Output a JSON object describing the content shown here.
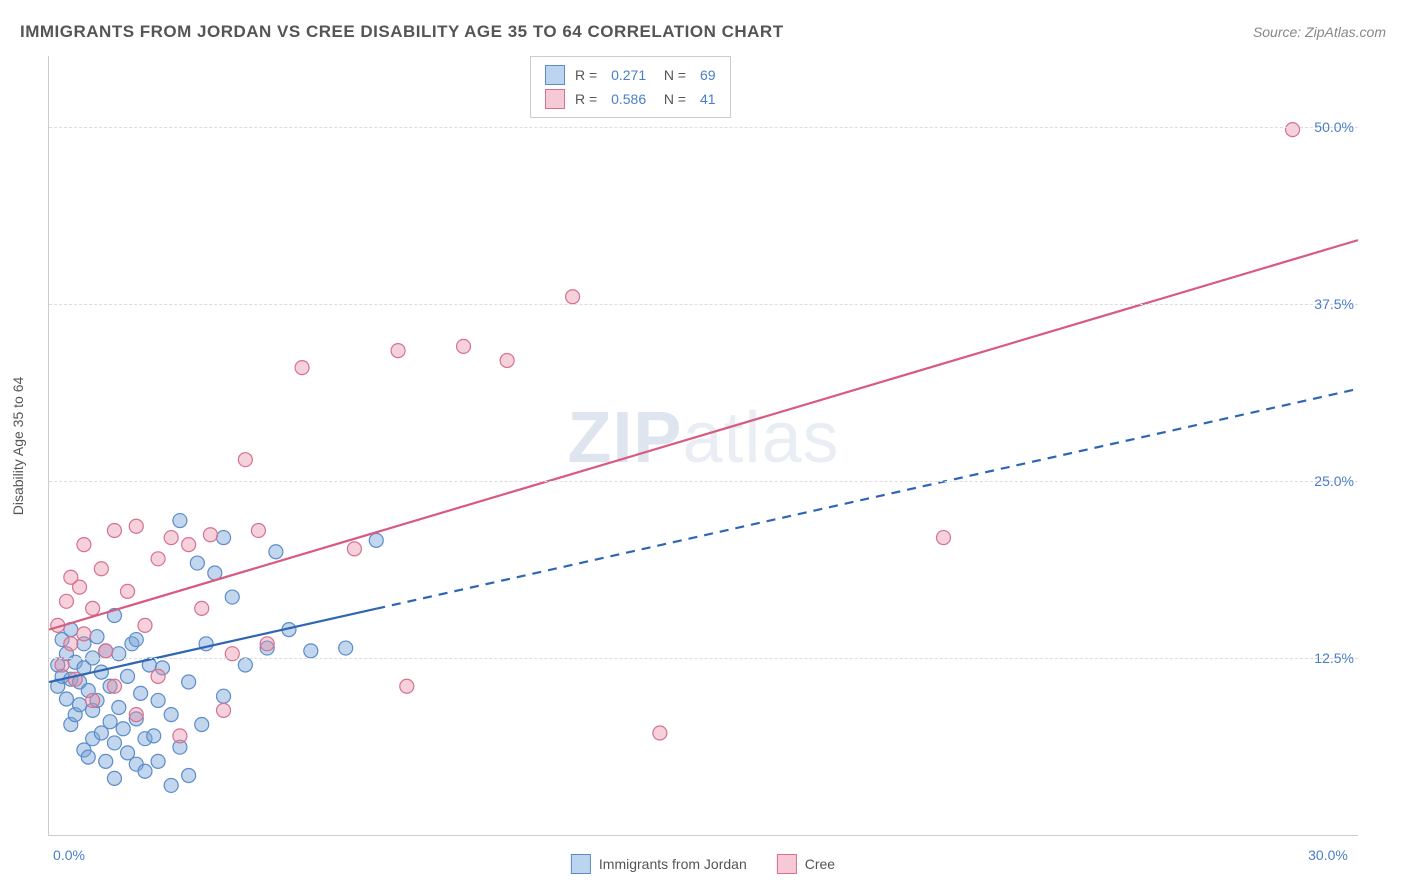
{
  "header": {
    "title": "IMMIGRANTS FROM JORDAN VS CREE DISABILITY AGE 35 TO 64 CORRELATION CHART",
    "source": "Source: ZipAtlas.com"
  },
  "ylabel": "Disability Age 35 to 64",
  "watermark": {
    "bold": "ZIP",
    "light": "atlas"
  },
  "chart": {
    "type": "scatter-with-regression",
    "background_color": "#ffffff",
    "grid_color": "#dddddd",
    "border_color": "#cccccc",
    "tick_label_color": "#4a7ec9",
    "axis_label_color": "#555555",
    "xlim": [
      0,
      30
    ],
    "ylim": [
      0,
      55
    ],
    "xtick_labels": {
      "0": "0.0%",
      "30": "30.0%"
    },
    "ytick_positions": [
      12.5,
      25.0,
      37.5,
      50.0
    ],
    "ytick_labels": [
      "12.5%",
      "25.0%",
      "37.5%",
      "50.0%"
    ],
    "marker_radius": 7,
    "marker_stroke_width": 1.2,
    "line_width": 2.2,
    "series": [
      {
        "id": "jordan",
        "legend_label": "Immigrants from Jordan",
        "swatch_fill": "#bcd4ef",
        "swatch_border": "#5d8cc9",
        "marker_fill": "rgba(120,165,215,0.45)",
        "marker_stroke": "#5d8cc9",
        "line_color": "#2f66b3",
        "R": "0.271",
        "N": "69",
        "regression": {
          "x1": 0,
          "y1": 10.8,
          "x2": 30,
          "y2": 31.5,
          "solid_until_x": 7.5
        },
        "points": [
          [
            0.2,
            10.5
          ],
          [
            0.2,
            12.0
          ],
          [
            0.3,
            11.2
          ],
          [
            0.3,
            13.8
          ],
          [
            0.4,
            9.6
          ],
          [
            0.4,
            12.8
          ],
          [
            0.5,
            11.0
          ],
          [
            0.5,
            14.5
          ],
          [
            0.5,
            7.8
          ],
          [
            0.6,
            8.5
          ],
          [
            0.6,
            12.2
          ],
          [
            0.7,
            9.2
          ],
          [
            0.7,
            10.8
          ],
          [
            0.8,
            6.0
          ],
          [
            0.8,
            13.5
          ],
          [
            0.8,
            11.8
          ],
          [
            0.9,
            5.5
          ],
          [
            0.9,
            10.2
          ],
          [
            1.0,
            8.8
          ],
          [
            1.0,
            12.5
          ],
          [
            1.0,
            6.8
          ],
          [
            1.1,
            14.0
          ],
          [
            1.1,
            9.5
          ],
          [
            1.2,
            7.2
          ],
          [
            1.2,
            11.5
          ],
          [
            1.3,
            5.2
          ],
          [
            1.3,
            13.0
          ],
          [
            1.4,
            8.0
          ],
          [
            1.4,
            10.5
          ],
          [
            1.5,
            4.0
          ],
          [
            1.5,
            6.5
          ],
          [
            1.6,
            12.8
          ],
          [
            1.6,
            9.0
          ],
          [
            1.7,
            7.5
          ],
          [
            1.8,
            11.2
          ],
          [
            1.8,
            5.8
          ],
          [
            1.9,
            13.5
          ],
          [
            2.0,
            8.2
          ],
          [
            2.0,
            5.0
          ],
          [
            2.1,
            10.0
          ],
          [
            2.2,
            6.8
          ],
          [
            2.2,
            4.5
          ],
          [
            2.3,
            12.0
          ],
          [
            2.4,
            7.0
          ],
          [
            2.5,
            9.5
          ],
          [
            2.5,
            5.2
          ],
          [
            2.6,
            11.8
          ],
          [
            2.8,
            3.5
          ],
          [
            2.8,
            8.5
          ],
          [
            3.0,
            6.2
          ],
          [
            3.0,
            22.2
          ],
          [
            3.2,
            10.8
          ],
          [
            3.2,
            4.2
          ],
          [
            3.4,
            19.2
          ],
          [
            3.5,
            7.8
          ],
          [
            3.6,
            13.5
          ],
          [
            3.8,
            18.5
          ],
          [
            4.0,
            9.8
          ],
          [
            4.0,
            21.0
          ],
          [
            4.2,
            16.8
          ],
          [
            4.5,
            12.0
          ],
          [
            5.0,
            13.2
          ],
          [
            5.2,
            20.0
          ],
          [
            5.5,
            14.5
          ],
          [
            6.0,
            13.0
          ],
          [
            6.8,
            13.2
          ],
          [
            7.5,
            20.8
          ],
          [
            2.0,
            13.8
          ],
          [
            1.5,
            15.5
          ]
        ]
      },
      {
        "id": "cree",
        "legend_label": "Cree",
        "swatch_fill": "#f6c9d6",
        "swatch_border": "#d9708f",
        "marker_fill": "rgba(230,140,165,0.40)",
        "marker_stroke": "#d9708f",
        "line_color": "#d85a7f",
        "R": "0.586",
        "N": "41",
        "regression": {
          "x1": 0,
          "y1": 14.5,
          "x2": 30,
          "y2": 42.0,
          "solid_until_x": 30
        },
        "points": [
          [
            0.2,
            14.8
          ],
          [
            0.3,
            12.0
          ],
          [
            0.4,
            16.5
          ],
          [
            0.5,
            13.5
          ],
          [
            0.5,
            18.2
          ],
          [
            0.6,
            11.0
          ],
          [
            0.7,
            17.5
          ],
          [
            0.8,
            14.2
          ],
          [
            0.8,
            20.5
          ],
          [
            1.0,
            16.0
          ],
          [
            1.0,
            9.5
          ],
          [
            1.2,
            18.8
          ],
          [
            1.3,
            13.0
          ],
          [
            1.5,
            21.5
          ],
          [
            1.5,
            10.5
          ],
          [
            1.8,
            17.2
          ],
          [
            2.0,
            8.5
          ],
          [
            2.0,
            21.8
          ],
          [
            2.2,
            14.8
          ],
          [
            2.5,
            19.5
          ],
          [
            2.5,
            11.2
          ],
          [
            2.8,
            21.0
          ],
          [
            3.0,
            7.0
          ],
          [
            3.2,
            20.5
          ],
          [
            3.5,
            16.0
          ],
          [
            3.7,
            21.2
          ],
          [
            4.0,
            8.8
          ],
          [
            4.2,
            12.8
          ],
          [
            4.5,
            26.5
          ],
          [
            5.0,
            13.5
          ],
          [
            5.8,
            33.0
          ],
          [
            7.0,
            20.2
          ],
          [
            8.0,
            34.2
          ],
          [
            8.2,
            10.5
          ],
          [
            9.5,
            34.5
          ],
          [
            10.5,
            33.5
          ],
          [
            12.0,
            38.0
          ],
          [
            14.0,
            7.2
          ],
          [
            20.5,
            21.0
          ],
          [
            28.5,
            49.8
          ],
          [
            4.8,
            21.5
          ]
        ]
      }
    ]
  },
  "bottom_legend": [
    {
      "label": "Immigrants from Jordan",
      "fill": "#bcd4ef",
      "border": "#5d8cc9"
    },
    {
      "label": "Cree",
      "fill": "#f6c9d6",
      "border": "#d9708f"
    }
  ]
}
